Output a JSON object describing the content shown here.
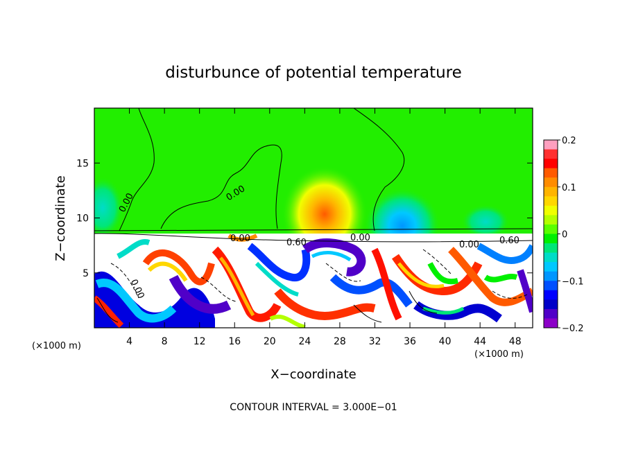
{
  "chart_data": {
    "type": "heatmap",
    "title": "disturbunce of potential temperature",
    "xlabel": "X−coordinate",
    "ylabel": "Z−coordinate",
    "x_unit": "(×1000 m)",
    "y_unit": "(×1000 m)",
    "x_ticks": [
      4,
      8,
      12,
      16,
      20,
      24,
      28,
      32,
      36,
      40,
      44,
      48
    ],
    "y_ticks": [
      5,
      10,
      15
    ],
    "xlim": [
      0,
      50
    ],
    "ylim": [
      0,
      20
    ],
    "colorbar": {
      "range": [
        -0.2,
        0.2
      ],
      "tick_labels": [
        "0.2",
        "0.1",
        "0",
        "−0.1",
        "−0.2"
      ],
      "tick_values": [
        0.2,
        0.1,
        0,
        -0.1,
        -0.2
      ],
      "colors": [
        "#ff9fbf",
        "#ff3030",
        "#ff0000",
        "#ff5a00",
        "#ff8c00",
        "#ffb400",
        "#ffd700",
        "#f0ff00",
        "#b4ff00",
        "#5aff00",
        "#00f000",
        "#00e678",
        "#00dcc8",
        "#00c8ff",
        "#0096ff",
        "#0050ff",
        "#0000ff",
        "#0000c8",
        "#5000c8",
        "#8c00c8"
      ]
    },
    "contour_labels": [
      "0.00",
      "0.00",
      "0.00",
      "0.60",
      "0.00",
      "0.60",
      "0.00",
      "0.00"
    ],
    "contour_interval_text": "CONTOUR INTERVAL =  3.000E−01"
  }
}
